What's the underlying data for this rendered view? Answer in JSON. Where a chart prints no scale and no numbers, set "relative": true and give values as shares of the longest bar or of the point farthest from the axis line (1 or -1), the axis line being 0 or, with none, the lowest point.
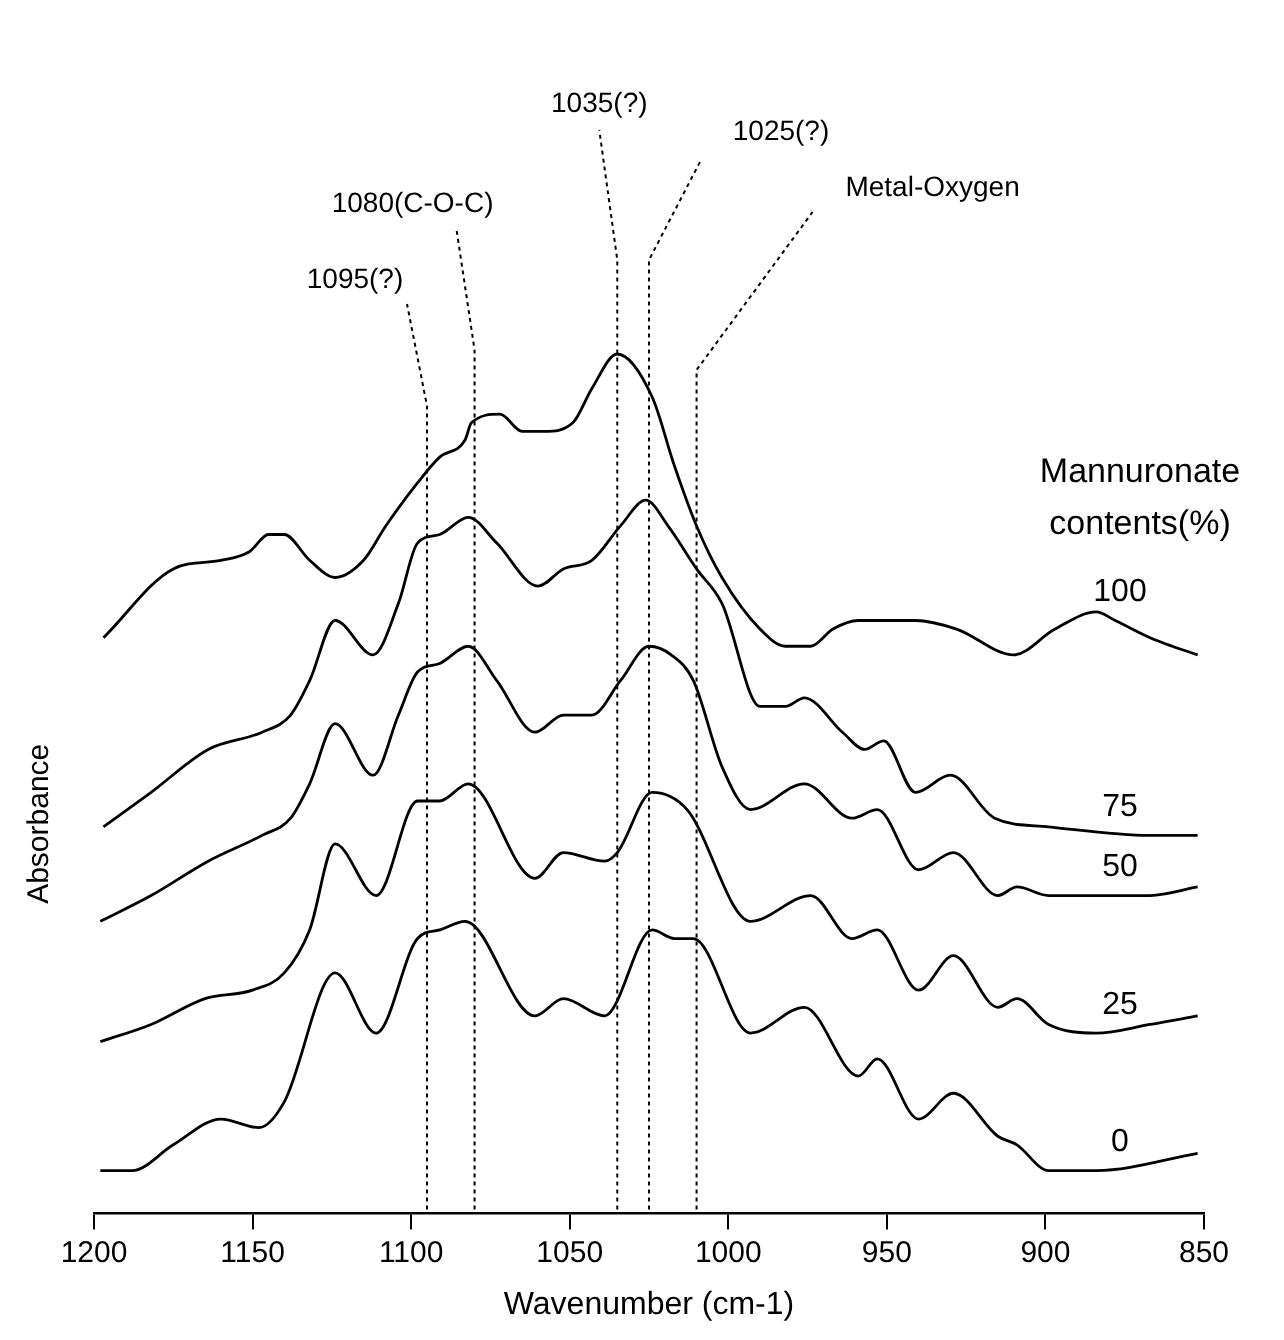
{
  "chart_data": {
    "type": "line",
    "relative": true,
    "xlabel": "Wavenumber (cm-1)",
    "ylabel": "Absorbance",
    "legend_title": "Mannuronate contents(%)",
    "xlim": [
      1200,
      850
    ],
    "xticks": [
      1200,
      1150,
      1100,
      1050,
      1000,
      950,
      900,
      850
    ],
    "grid": false,
    "legend": false,
    "marker": "none",
    "line_style": "solid",
    "series": [
      {
        "name": "100",
        "color": "#000000",
        "x": [
          1197,
          1175,
          1160,
          1151,
          1145,
          1140,
          1132,
          1124,
          1115,
          1108,
          1098,
          1091,
          1083,
          1081,
          1072,
          1065,
          1058,
          1049,
          1043,
          1035,
          1024,
          1017,
          1010,
          1002,
          990,
          982,
          974,
          967,
          959,
          941,
          928,
          910,
          897,
          884,
          878,
          867,
          860,
          852
        ],
        "values": [
          0.67,
          0.75,
          0.76,
          0.77,
          0.79,
          0.79,
          0.76,
          0.74,
          0.76,
          0.8,
          0.85,
          0.88,
          0.9,
          0.92,
          0.93,
          0.91,
          0.91,
          0.92,
          0.96,
          1.0,
          0.95,
          0.87,
          0.8,
          0.74,
          0.68,
          0.66,
          0.66,
          0.68,
          0.69,
          0.69,
          0.68,
          0.65,
          0.68,
          0.7,
          0.69,
          0.67,
          0.66,
          0.65
        ]
      },
      {
        "name": "75",
        "color": "#000000",
        "x": [
          1197,
          1182,
          1164,
          1147,
          1138,
          1132,
          1124,
          1112,
          1104,
          1098,
          1091,
          1082,
          1073,
          1060,
          1052,
          1043,
          1034,
          1026,
          1019,
          1010,
          1002,
          990,
          982,
          976,
          964,
          957,
          951,
          941,
          930,
          916,
          899,
          867,
          852
        ],
        "values": [
          0.45,
          0.49,
          0.54,
          0.56,
          0.58,
          0.62,
          0.69,
          0.65,
          0.71,
          0.78,
          0.79,
          0.81,
          0.78,
          0.73,
          0.75,
          0.76,
          0.8,
          0.83,
          0.8,
          0.75,
          0.71,
          0.59,
          0.59,
          0.6,
          0.56,
          0.54,
          0.55,
          0.49,
          0.51,
          0.46,
          0.45,
          0.44,
          0.44
        ]
      },
      {
        "name": "50",
        "color": "#000000",
        "x": [
          1198,
          1182,
          1164,
          1147,
          1138,
          1132,
          1124,
          1112,
          1104,
          1098,
          1091,
          1082,
          1073,
          1061,
          1052,
          1043,
          1034,
          1025,
          1018,
          1011,
          1002,
          993,
          976,
          961,
          953,
          940,
          929,
          915,
          909,
          899,
          884,
          867,
          852
        ],
        "values": [
          0.34,
          0.37,
          0.41,
          0.44,
          0.46,
          0.5,
          0.57,
          0.51,
          0.58,
          0.63,
          0.64,
          0.66,
          0.62,
          0.56,
          0.58,
          0.58,
          0.62,
          0.66,
          0.65,
          0.62,
          0.52,
          0.47,
          0.5,
          0.46,
          0.47,
          0.4,
          0.42,
          0.37,
          0.38,
          0.37,
          0.37,
          0.37,
          0.38
        ]
      },
      {
        "name": "25",
        "color": "#000000",
        "x": [
          1198,
          1182,
          1165,
          1150,
          1140,
          1132,
          1124,
          1111,
          1098,
          1091,
          1082,
          1061,
          1052,
          1039,
          1035,
          1024,
          1013,
          993,
          974,
          961,
          953,
          940,
          929,
          915,
          909,
          899,
          884,
          867,
          852
        ],
        "values": [
          0.2,
          0.22,
          0.25,
          0.26,
          0.28,
          0.33,
          0.43,
          0.37,
          0.48,
          0.48,
          0.5,
          0.39,
          0.42,
          0.41,
          0.42,
          0.49,
          0.47,
          0.34,
          0.37,
          0.32,
          0.33,
          0.26,
          0.3,
          0.24,
          0.25,
          0.22,
          0.21,
          0.22,
          0.23
        ]
      },
      {
        "name": "0",
        "color": "#000000",
        "x": [
          1198,
          1188,
          1175,
          1160,
          1148,
          1140,
          1124,
          1111,
          1098,
          1091,
          1083,
          1061,
          1052,
          1039,
          1024,
          1017,
          1011,
          993,
          976,
          959,
          953,
          940,
          929,
          915,
          909,
          899,
          884,
          852
        ],
        "values": [
          0.05,
          0.05,
          0.08,
          0.11,
          0.1,
          0.13,
          0.28,
          0.21,
          0.32,
          0.33,
          0.34,
          0.23,
          0.25,
          0.23,
          0.33,
          0.32,
          0.32,
          0.21,
          0.24,
          0.16,
          0.18,
          0.11,
          0.14,
          0.09,
          0.08,
          0.05,
          0.05,
          0.07
        ]
      }
    ],
    "ref_lines": [
      {
        "axis": "x",
        "value": 1095,
        "label": "1095(?)",
        "color": "#000000",
        "line_style": "dotted"
      },
      {
        "axis": "x",
        "value": 1080,
        "label": "1080(C-O-C)",
        "color": "#000000",
        "line_style": "dotted"
      },
      {
        "axis": "x",
        "value": 1035,
        "label": "1035(?)",
        "color": "#000000",
        "line_style": "dotted"
      },
      {
        "axis": "x",
        "value": 1025,
        "label": "1025(?)",
        "color": "#000000",
        "line_style": "dotted"
      },
      {
        "axis": "x",
        "value": 1010,
        "label": "Metal-Oxygen",
        "color": "#000000",
        "line_style": "dotted"
      }
    ]
  }
}
